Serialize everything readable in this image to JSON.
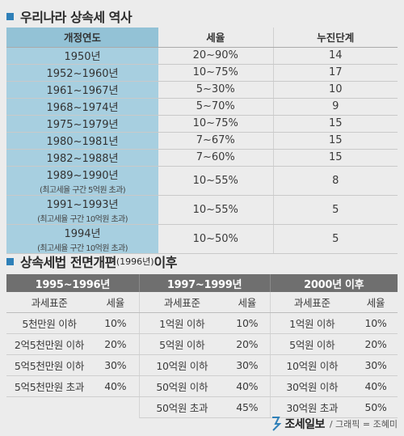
{
  "section1": {
    "title": "우리나라 상속세 역사",
    "headers": [
      "개정연도",
      "세율",
      "누진단계"
    ],
    "rows": [
      {
        "year": "1950년",
        "note": "",
        "rate": "20~90%",
        "steps": "14"
      },
      {
        "year": "1952~1960년",
        "note": "",
        "rate": "10~75%",
        "steps": "17"
      },
      {
        "year": "1961~1967년",
        "note": "",
        "rate": "5~30%",
        "steps": "10"
      },
      {
        "year": "1968~1974년",
        "note": "",
        "rate": "5~70%",
        "steps": "9"
      },
      {
        "year": "1975~1979년",
        "note": "",
        "rate": "10~75%",
        "steps": "15"
      },
      {
        "year": "1980~1981년",
        "note": "",
        "rate": "7~67%",
        "steps": "15"
      },
      {
        "year": "1982~1988년",
        "note": "",
        "rate": "7~60%",
        "steps": "15"
      },
      {
        "year": "1989~1990년",
        "note": "(최고세율 구간 5억원 초과)",
        "rate": "10~55%",
        "steps": "8"
      },
      {
        "year": "1991~1993년",
        "note": "(최고세율 구간 10억원 초과)",
        "rate": "10~55%",
        "steps": "5"
      },
      {
        "year": "1994년",
        "note": "(최고세율 구간 10억원 초과)",
        "rate": "10~50%",
        "steps": "5"
      }
    ]
  },
  "section2": {
    "title_main": "상속세법 전면개편",
    "title_year": "(1996년)",
    "title_tail": " 이후",
    "periods": [
      "1995~1996년",
      "1997~1999년",
      "2000년 이후"
    ],
    "subheaders": [
      "과세표준",
      "세율"
    ],
    "rows": [
      [
        "5천만원 이하",
        "10%",
        "1억원 이하",
        "10%",
        "1억원 이하",
        "10%"
      ],
      [
        "2억5천만원 이하",
        "20%",
        "5억원 이하",
        "20%",
        "5억원 이하",
        "20%"
      ],
      [
        "5억5천만원 이하",
        "30%",
        "10억원 이하",
        "30%",
        "10억원 이하",
        "30%"
      ],
      [
        "5억5천만원 초과",
        "40%",
        "50억원 이하",
        "40%",
        "30억원 이하",
        "40%"
      ],
      [
        "",
        "",
        "50억원 초과",
        "45%",
        "30억원 초과",
        "50%"
      ]
    ]
  },
  "footer": {
    "brand": "조세일보",
    "credit": "/ 그래픽 = 조혜미",
    "accent": "#2f80b8"
  }
}
